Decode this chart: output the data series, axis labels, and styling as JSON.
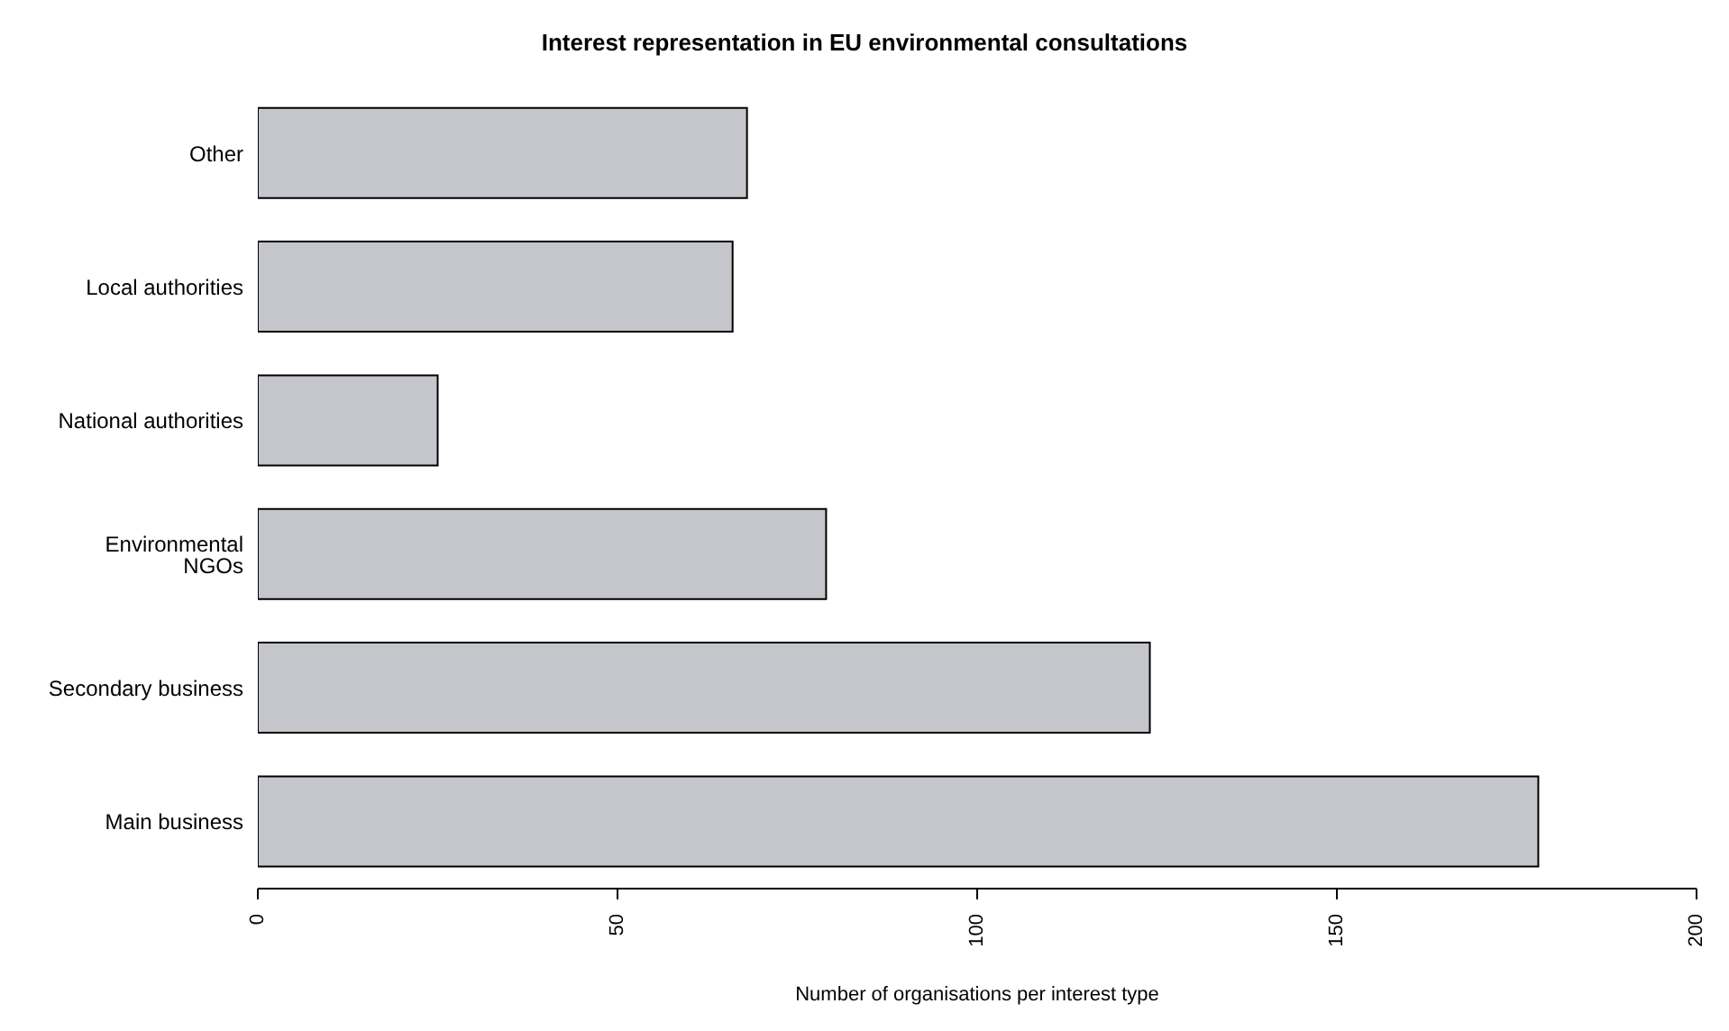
{
  "chart_data": {
    "type": "bar",
    "orientation": "horizontal",
    "title": "Interest representation in EU environmental consultations",
    "xlabel": "Number of organisations per interest type",
    "categories": [
      "Other",
      "Local authorities",
      "National authorities",
      "Environmental NGOs",
      "Secondary business",
      "Main business"
    ],
    "values": [
      68,
      66,
      25,
      79,
      124,
      178
    ],
    "color": "#c4c6cc",
    "xlim": [
      0,
      200
    ],
    "xticks": [
      0,
      50,
      100,
      150,
      200
    ],
    "grid": false,
    "legend": false
  }
}
